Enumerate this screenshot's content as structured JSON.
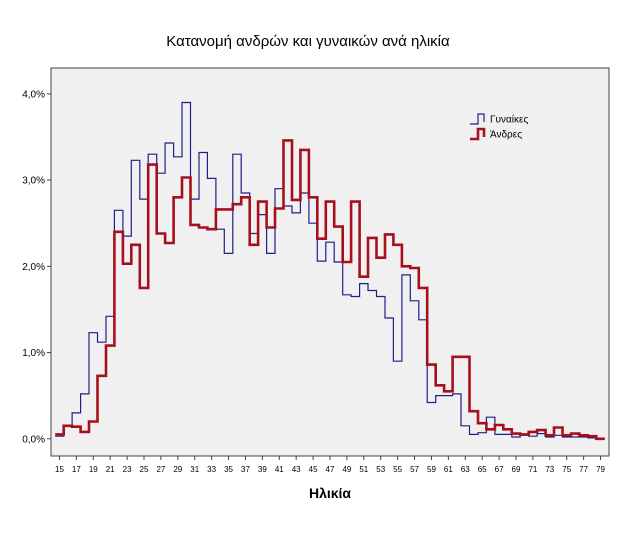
{
  "chart_data": {
    "type": "line",
    "title": "Κατανομή ανδρών και γυναικών ανά ηλικία",
    "xlabel": "Ηλικία",
    "ylabel": "",
    "x": [
      15,
      16,
      17,
      18,
      19,
      20,
      21,
      22,
      23,
      24,
      25,
      26,
      27,
      28,
      29,
      30,
      31,
      32,
      33,
      34,
      35,
      36,
      37,
      38,
      39,
      40,
      41,
      42,
      43,
      44,
      45,
      46,
      47,
      48,
      49,
      50,
      51,
      52,
      53,
      54,
      55,
      56,
      57,
      58,
      59,
      60,
      61,
      62,
      63,
      64,
      65,
      66,
      67,
      68,
      69,
      70,
      71,
      72,
      73,
      74,
      75,
      76,
      77,
      78,
      79
    ],
    "xticks": [
      "15",
      "17",
      "19",
      "21",
      "23",
      "25",
      "27",
      "29",
      "31",
      "33",
      "35",
      "37",
      "39",
      "41",
      "43",
      "45",
      "47",
      "49",
      "51",
      "53",
      "55",
      "57",
      "59",
      "61",
      "63",
      "65",
      "67",
      "69",
      "71",
      "73",
      "75",
      "77",
      "79"
    ],
    "xlim": [
      14,
      80
    ],
    "yticks": [
      "0,0%",
      "1,0%",
      "2,0%",
      "3,0%",
      "4,0%"
    ],
    "ylim": [
      -0.2,
      4.3
    ],
    "grid": false,
    "legend_position": "top-right",
    "series": [
      {
        "name": "Γυναίκες",
        "color": "#1f1f8a",
        "values": [
          0.03,
          0.15,
          0.3,
          0.52,
          1.23,
          1.12,
          1.42,
          2.65,
          2.35,
          3.23,
          2.78,
          3.3,
          3.08,
          3.43,
          3.27,
          3.9,
          2.78,
          3.32,
          3.02,
          2.43,
          2.15,
          3.3,
          2.85,
          2.38,
          2.6,
          2.15,
          2.9,
          2.7,
          2.62,
          2.85,
          2.5,
          2.06,
          2.28,
          2.05,
          1.67,
          1.65,
          1.8,
          1.72,
          1.65,
          1.4,
          0.9,
          1.9,
          1.6,
          1.38,
          0.42,
          0.5,
          0.5,
          0.52,
          0.15,
          0.05,
          0.07,
          0.25,
          0.05,
          0.05,
          0.02,
          0.04,
          0.03,
          0.06,
          0.02,
          0.04,
          0.02,
          0.02,
          0.02,
          0.01,
          0.0
        ]
      },
      {
        "name": "Άνδρες",
        "color": "#a80f1e",
        "values": [
          0.05,
          0.15,
          0.14,
          0.08,
          0.2,
          0.73,
          1.08,
          2.4,
          2.03,
          2.25,
          1.75,
          3.18,
          2.38,
          2.27,
          2.8,
          3.03,
          2.48,
          2.45,
          2.43,
          2.66,
          2.66,
          2.72,
          2.8,
          2.25,
          2.75,
          2.45,
          2.67,
          3.46,
          2.77,
          3.35,
          2.8,
          2.32,
          2.75,
          2.46,
          2.05,
          2.75,
          1.88,
          2.33,
          2.1,
          2.37,
          2.25,
          2.0,
          1.98,
          1.75,
          0.86,
          0.62,
          0.55,
          0.95,
          0.95,
          0.32,
          0.18,
          0.11,
          0.16,
          0.11,
          0.06,
          0.05,
          0.08,
          0.1,
          0.04,
          0.13,
          0.04,
          0.06,
          0.04,
          0.03,
          0.0
        ]
      }
    ]
  }
}
